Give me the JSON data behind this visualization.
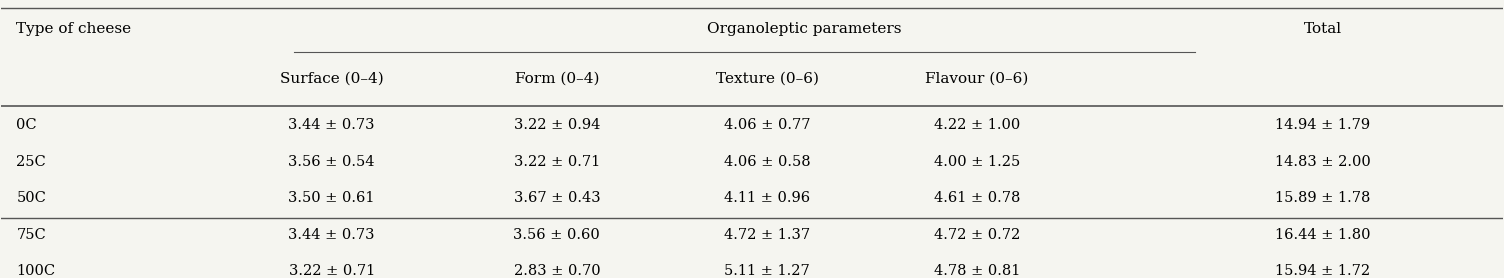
{
  "col_header_row1": [
    "Type of cheese",
    "Organoleptic parameters",
    "",
    "",
    "",
    "Total"
  ],
  "col_header_row2": [
    "",
    "Surface (0–4)",
    "Form (0–4)",
    "Texture (0–6)",
    "Flavour (0–6)",
    ""
  ],
  "rows": [
    [
      "0C",
      "3.44 ± 0.73",
      "3.22 ± 0.94",
      "4.06 ± 0.77",
      "4.22 ± 1.00",
      "14.94 ± 1.79"
    ],
    [
      "25C",
      "3.56 ± 0.54",
      "3.22 ± 0.71",
      "4.06 ± 0.58",
      "4.00 ± 1.25",
      "14.83 ± 2.00"
    ],
    [
      "50C",
      "3.50 ± 0.61",
      "3.67 ± 0.43",
      "4.11 ± 0.96",
      "4.61 ± 0.78",
      "15.89 ± 1.78"
    ],
    [
      "75C",
      "3.44 ± 0.73",
      "3.56 ± 0.60",
      "4.72 ± 1.37",
      "4.72 ± 0.72",
      "16.44 ± 1.80"
    ],
    [
      "100C",
      "3.22 ± 0.71",
      "2.83 ± 0.70",
      "5.11 ± 1.27",
      "4.78 ± 0.81",
      "15.94 ± 1.72"
    ]
  ],
  "bg_color": "#f5f5f0",
  "text_color": "#000000",
  "line_color": "#555555"
}
